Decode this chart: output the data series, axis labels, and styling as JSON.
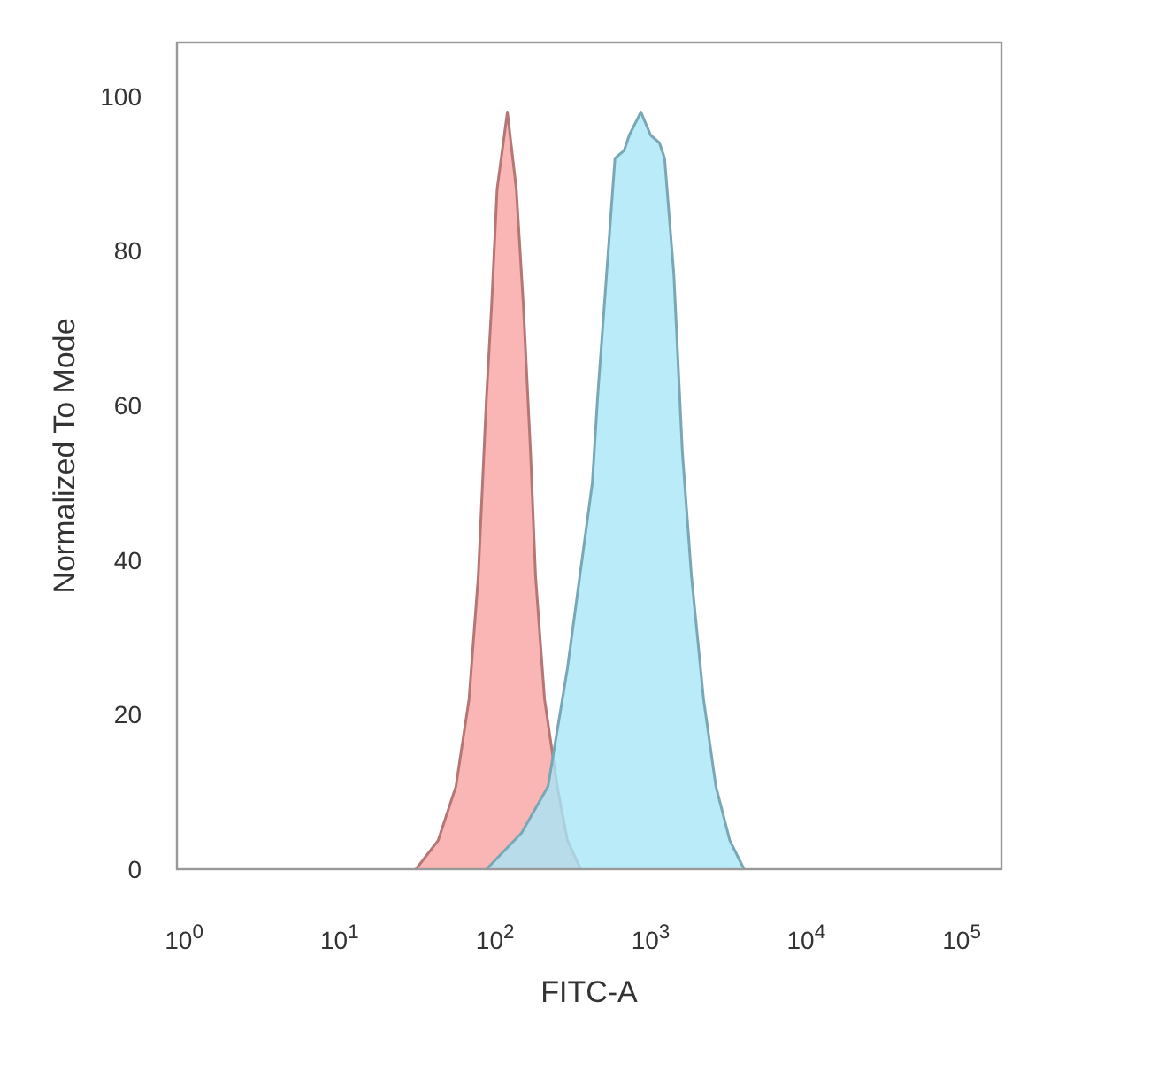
{
  "chart_data": {
    "type": "area",
    "xlabel": "FITC-A",
    "ylabel": "Normalized To Mode",
    "log": "x",
    "grid": false,
    "xlim": [
      0.9,
      180000
    ],
    "ylim": [
      0,
      107
    ],
    "xticks": [
      {
        "value": 1,
        "label": "10$^{0}$"
      },
      {
        "value": 10,
        "label": "10$^{1}$"
      },
      {
        "value": 100,
        "label": "10$^{2}$"
      },
      {
        "value": 1000,
        "label": "10$^{3}$"
      },
      {
        "value": 10000,
        "label": "10$^{4}$"
      },
      {
        "value": 100000,
        "label": "10$^{5}$"
      }
    ],
    "yticks": [
      0,
      20,
      40,
      60,
      80,
      100
    ],
    "series": [
      {
        "color": "#f9a3a3",
        "x": [
          31,
          43,
          56,
          68,
          78,
          88,
          95,
          103,
          120,
          137,
          152,
          169,
          182,
          208,
          251,
          292,
          355
        ],
        "values": [
          0,
          3.7,
          10.7,
          22,
          38,
          61,
          73,
          88,
          98,
          88,
          73,
          54,
          38,
          22,
          10.7,
          3.7,
          0
        ]
      },
      {
        "color": "#a8e6f8",
        "x": [
          88,
          148,
          219,
          292,
          351,
          422,
          456,
          521,
          590,
          675,
          729,
          866,
          1000,
          1140,
          1230,
          1410,
          1600,
          1830,
          2190,
          2630,
          3230,
          3990
        ],
        "values": [
          0,
          4.7,
          10.7,
          26,
          38,
          50,
          61,
          77,
          92,
          93,
          95,
          98,
          95,
          94,
          92,
          77,
          54,
          38,
          22,
          10.7,
          3.7,
          0
        ]
      }
    ]
  }
}
